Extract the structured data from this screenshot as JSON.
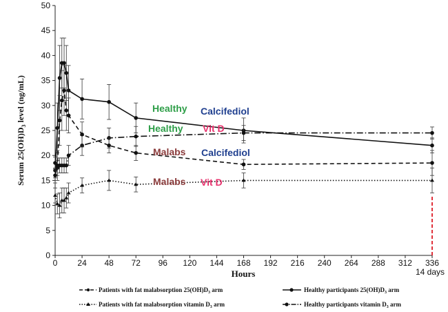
{
  "chart_data": {
    "type": "line",
    "ylabel_main": "Serum 25(OH)D",
    "ylabel_sub": "3",
    "ylabel_tail": " level (ng/mL)",
    "xlabel": "Hours",
    "ylim": [
      0,
      50
    ],
    "xlim": [
      0,
      336
    ],
    "yticks": [
      0,
      5,
      10,
      15,
      20,
      25,
      30,
      35,
      40,
      45,
      50
    ],
    "xticks": [
      0,
      24,
      48,
      72,
      96,
      120,
      144,
      168,
      192,
      216,
      240,
      264,
      288,
      312,
      336
    ],
    "series": [
      {
        "name": "healthy-calcifediol",
        "style": "solid",
        "marker": "circle",
        "x": [
          0,
          2,
          4,
          6,
          8,
          10,
          12,
          24,
          48,
          72,
          168,
          336
        ],
        "y": [
          17,
          25.5,
          35.5,
          38.5,
          38.5,
          36.5,
          33,
          31.3,
          30.7,
          27.5,
          25,
          22
        ],
        "err": [
          1.5,
          5,
          6.5,
          5,
          5,
          5.5,
          5,
          4,
          3.5,
          3,
          2.5,
          1.5
        ]
      },
      {
        "name": "healthy-vitd",
        "style": "dashdot",
        "marker": "circle",
        "x": [
          0,
          2,
          4,
          6,
          8,
          10,
          12,
          24,
          48,
          72,
          168,
          336
        ],
        "y": [
          18.5,
          17.5,
          18,
          18,
          18,
          18,
          20,
          22,
          23.5,
          23.8,
          24.5,
          24.5
        ],
        "err": [
          1.2,
          1.5,
          1.5,
          1.5,
          1.5,
          1.5,
          2,
          2,
          2,
          2,
          1.5,
          1.2
        ]
      },
      {
        "name": "malabs-calcifediol",
        "style": "dashed",
        "marker": "circle",
        "x": [
          0,
          2,
          4,
          6,
          8,
          10,
          12,
          24,
          48,
          72,
          168,
          336
        ],
        "y": [
          16,
          18,
          27,
          31,
          33,
          29,
          28,
          24.2,
          22,
          20.5,
          18.2,
          18.5
        ],
        "err": [
          1.5,
          3,
          5,
          6,
          5,
          4,
          3.5,
          2.5,
          1.5,
          1.5,
          1,
          2.5
        ]
      },
      {
        "name": "malabs-vitd",
        "style": "dotted",
        "marker": "triangle",
        "x": [
          0,
          2,
          4,
          6,
          8,
          10,
          12,
          24,
          48,
          72,
          168,
          336
        ],
        "y": [
          12,
          10.3,
          10,
          11,
          11,
          11.5,
          12.5,
          14,
          15,
          14.2,
          15,
          15
        ],
        "err": [
          1.5,
          2,
          2.5,
          2.5,
          2.5,
          2,
          2,
          1.5,
          2,
          1.5,
          1.5,
          2.5
        ]
      }
    ],
    "annotations": [
      {
        "group": "Healthy",
        "label": "Calcifediol",
        "group_color": "#2e9e48",
        "label_color": "#1f3f8f"
      },
      {
        "group": "Healthy",
        "label": "Vit D",
        "group_color": "#2e9e48",
        "label_color": "#e8336e"
      },
      {
        "group": "Malabs",
        "label": "Calcifediol",
        "group_color": "#8a3b3b",
        "label_color": "#1f3f8f"
      },
      {
        "group": "Malabs",
        "label": "Vit D",
        "group_color": "#8a3b3b",
        "label_color": "#e8336e"
      }
    ],
    "days_marker": {
      "x": 336,
      "label": "14 days",
      "color": "#e0303a"
    },
    "legend": [
      {
        "series": "malabs-calcifediol",
        "text": "Patients with  fat malabsorption  25(OH)D",
        "sub": "3",
        "tail": " arm"
      },
      {
        "series": "healthy-calcifediol",
        "text": "Healthy participants  25(OH)D",
        "sub": "3",
        "tail": " arm"
      },
      {
        "series": "malabs-vitd",
        "text": "Patients with  fat malabsorption  vitamin  D",
        "sub": "3",
        "tail": " arm"
      },
      {
        "series": "healthy-vitd",
        "text": "Healthy participants  vitamin  D",
        "sub": "3",
        "tail": " arm"
      }
    ]
  }
}
